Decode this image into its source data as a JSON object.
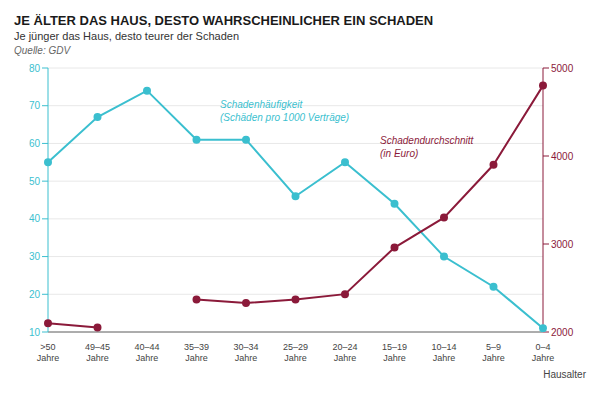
{
  "chart_data": {
    "type": "line",
    "title": "JE ÄLTER DAS HAUS, DESTO WAHRSCHEINLICHER EIN SCHADEN",
    "subtitle": "Je jünger das Haus, desto teurer der Schaden",
    "source": "Quelle: GDV",
    "x_label": "Hausalter",
    "categories": [
      ">50\nJahre",
      "49–45\nJahre",
      "40–44\nJahre",
      "35–39\nJahre",
      "30–34\nJahre",
      "25–29\nJahre",
      "20–24\nJahre",
      "15–19\nJahre",
      "10–14\nJahre",
      "5–9\nJahre",
      "0–4\nJahre"
    ],
    "series": [
      {
        "name": "Schadenhäufigkeit\n(Schäden pro 1000 Verträge)",
        "color": "#3BBFCF",
        "marker": "circle",
        "values": [
          55,
          67,
          74,
          61,
          61,
          46,
          55,
          44,
          30,
          22,
          11
        ]
      },
      {
        "name": "Schadendurchschnitt\n(in Euro)",
        "color": "#8B1A3A",
        "marker": "circle",
        "axis": "y2",
        "values": [
          2100,
          2050,
          null,
          2370,
          2330,
          2370,
          2430,
          2960,
          3300,
          3900,
          4800
        ]
      }
    ],
    "ylim": [
      10,
      80
    ],
    "yticks": [
      10,
      20,
      30,
      40,
      50,
      60,
      70,
      80
    ],
    "y2lim": [
      2000,
      5000
    ],
    "y2ticks": [
      2000,
      3000,
      4000,
      5000
    ],
    "grid": true
  }
}
